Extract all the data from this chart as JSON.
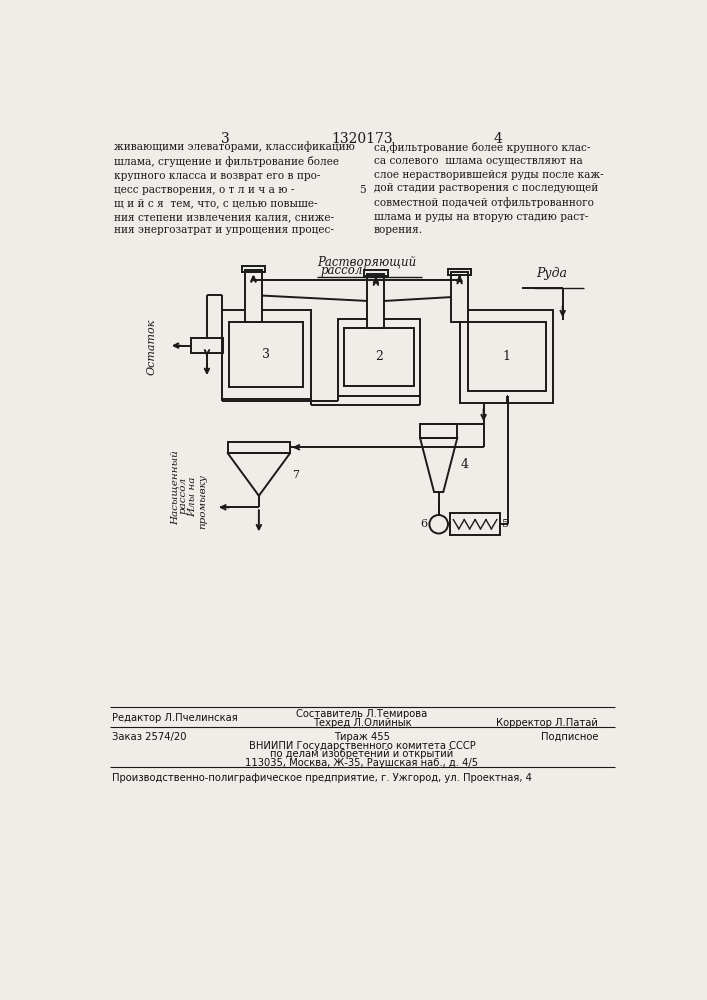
{
  "bg_color": "#f0ede8",
  "page_num_left": "3",
  "page_num_center": "1320173",
  "page_num_right": "4",
  "text_col1": "живающими элеваторами, классификацию\nшлама, сгущение и фильтрование более\nкрупного класса и возврат его в про-\nцесс растворения, о т л и ч а ю -\nщ и й с я  тем, что, с целью повыше-\nния степени извлечения калия, сниже-\nния энергозатрат и упрощения процес-",
  "text_col2": "са,фильтрование более крупного клас-\nса солевого  шлама осуществляют на\nслое нерастворившейся руды после каж-\nдой стадии растворения с последующей\nсовместной подачей отфильтрованного\nшлама и руды на вторую стадию раст-\nворения.",
  "line5_label": "5",
  "diagram_label_rastv": "Растворяющий",
  "diagram_label_rassol": "рассол",
  "diagram_label_ruda": "Руда",
  "diagram_label_ostatok": "Остаток",
  "diagram_label_nasysh": "Насыщенный\nрассол\nИлы на\nпромывку",
  "node1_label": "1",
  "node2_label": "2",
  "node3_label": "3",
  "node4_label": "4",
  "node5_label": "5",
  "node6_label": "6",
  "node7_label": "7",
  "footer_line1_left": "Редактор Л.Пчелинская",
  "footer_line1_center": "Составитель Л.Темирова",
  "footer_line2_center": "Техред Л.Олийнык",
  "footer_line2_right": "Корректор Л.Патай",
  "footer_line3_left": "Заказ 2574/20",
  "footer_line3_center": "Тираж 455",
  "footer_line3_right": "Подписное",
  "footer_line4": "ВНИИПИ Государственного комитета СССР",
  "footer_line5": "по делам изобретений и открытий",
  "footer_line6": "113035, Москва, Ж-35, Раушская наб., д. 4/5",
  "footer_line7": "Производственно-полиграфическое предприятие, г. Ужгород, ул. Проектная, 4"
}
